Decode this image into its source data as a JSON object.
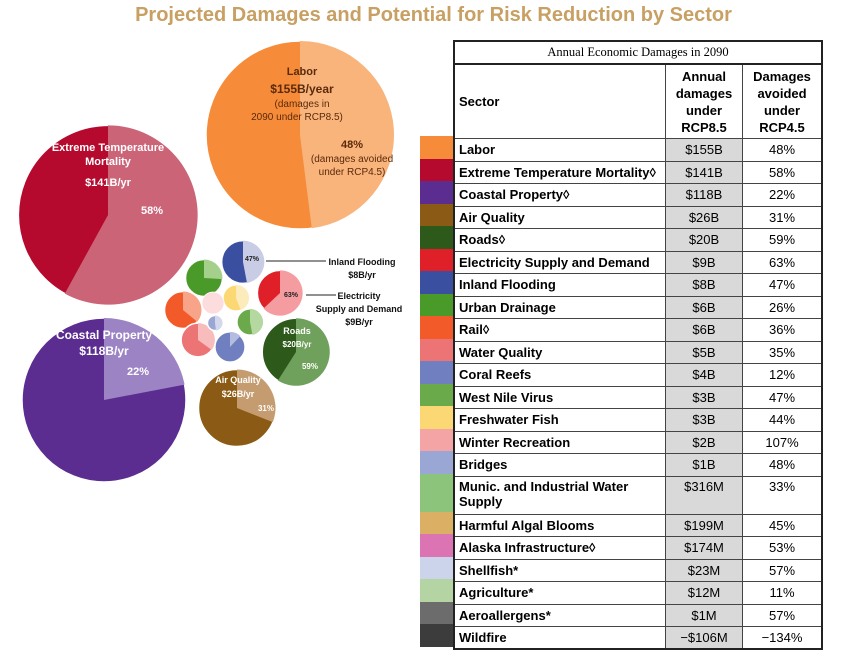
{
  "title": "Projected Damages and Potential for Risk Reduction by Sector",
  "colors": {
    "title": "#c8a064"
  },
  "table": {
    "caption": "Annual Economic Damages in 2090",
    "headers": {
      "sector": "Sector",
      "annual_damages": "Annual damages under RCP8.5",
      "damages_avoided": "Damages avoided under RCP4.5"
    },
    "rows": [
      {
        "sector": "Labor",
        "damages": "$155B",
        "avoided": "48%",
        "color": "#f68c3a"
      },
      {
        "sector": "Extreme Temperature Mortality◊",
        "damages": "$141B",
        "avoided": "58%",
        "color": "#b5092e"
      },
      {
        "sector": "Coastal Property◊",
        "damages": "$118B",
        "avoided": "22%",
        "color": "#5c2d91"
      },
      {
        "sector": "Air Quality",
        "damages": "$26B",
        "avoided": "31%",
        "color": "#8b5a14"
      },
      {
        "sector": "Roads◊",
        "damages": "$20B",
        "avoided": "59%",
        "color": "#2d5a1b"
      },
      {
        "sector": "Electricity Supply and Demand",
        "damages": "$9B",
        "avoided": "63%",
        "color": "#e02028"
      },
      {
        "sector": "Inland Flooding",
        "damages": "$8B",
        "avoided": "47%",
        "color": "#3a4fa0"
      },
      {
        "sector": "Urban Drainage",
        "damages": "$6B",
        "avoided": "26%",
        "color": "#4a9a2a"
      },
      {
        "sector": "Rail◊",
        "damages": "$6B",
        "avoided": "36%",
        "color": "#f25a2a"
      },
      {
        "sector": "Water Quality",
        "damages": "$5B",
        "avoided": "35%",
        "color": "#ec7474"
      },
      {
        "sector": "Coral Reefs",
        "damages": "$4B",
        "avoided": "12%",
        "color": "#6f7fbf"
      },
      {
        "sector": "West Nile Virus",
        "damages": "$3B",
        "avoided": "47%",
        "color": "#6aaa4a"
      },
      {
        "sector": "Freshwater Fish",
        "damages": "$3B",
        "avoided": "44%",
        "color": "#fcd874"
      },
      {
        "sector": "Winter Recreation",
        "damages": "$2B",
        "avoided": "107%",
        "color": "#f4a4a4"
      },
      {
        "sector": "Bridges",
        "damages": "$1B",
        "avoided": "48%",
        "color": "#9aa6d4"
      },
      {
        "sector": "Munic. and Industrial Water Supply",
        "damages": "$316M",
        "avoided": "33%",
        "color": "#8cc47c"
      },
      {
        "sector": "Harmful Algal Blooms",
        "damages": "$199M",
        "avoided": "45%",
        "color": "#dcb064"
      },
      {
        "sector": "Alaska Infrastructure◊",
        "damages": "$174M",
        "avoided": "53%",
        "color": "#dc74b4"
      },
      {
        "sector": "Shellfish*",
        "damages": "$23M",
        "avoided": "57%",
        "color": "#ccd4ec"
      },
      {
        "sector": "Agriculture*",
        "damages": "$12M",
        "avoided": "11%",
        "color": "#b4d4a4"
      },
      {
        "sector": "Aeroallergens*",
        "damages": "$1M",
        "avoided": "57%",
        "color": "#6c6c6c"
      },
      {
        "sector": "Wildfire",
        "damages": "−$106M",
        "avoided": "−134%",
        "color": "#3c3c3c"
      }
    ]
  },
  "chart_data": {
    "type": "bubble",
    "title": "Projected Damages and Potential for Risk Reduction by Sector",
    "bubbles": [
      {
        "sector": "Labor",
        "damages_billion": 155,
        "avoided_pct": 48,
        "color": "#f68c3a",
        "light": "#f9b47c"
      },
      {
        "sector": "Extreme Temperature Mortality",
        "damages_billion": 141,
        "avoided_pct": 58,
        "color": "#b5092e",
        "light": "#cc6478"
      },
      {
        "sector": "Coastal Property",
        "damages_billion": 118,
        "avoided_pct": 22,
        "color": "#5c2d91",
        "light": "#9c84c4"
      },
      {
        "sector": "Air Quality",
        "damages_billion": 26,
        "avoided_pct": 31,
        "color": "#8b5a14",
        "light": "#c49c70"
      },
      {
        "sector": "Roads",
        "damages_billion": 20,
        "avoided_pct": 59,
        "color": "#2d5a1b",
        "light": "#6fa05c"
      },
      {
        "sector": "Electricity Supply and Demand",
        "damages_billion": 9,
        "avoided_pct": 63,
        "color": "#e02028",
        "light": "#f49ca0"
      },
      {
        "sector": "Inland Flooding",
        "damages_billion": 8,
        "avoided_pct": 47,
        "color": "#3a4fa0",
        "light": "#c8cce4"
      },
      {
        "sector": "Urban Drainage",
        "damages_billion": 6,
        "avoided_pct": 26,
        "color": "#4a9a2a",
        "light": "#a4d08c"
      },
      {
        "sector": "Rail",
        "damages_billion": 6,
        "avoided_pct": 36,
        "color": "#f25a2a",
        "light": "#f8a488"
      },
      {
        "sector": "Water Quality",
        "damages_billion": 5,
        "avoided_pct": 35,
        "color": "#ec7474",
        "light": "#f8bcbc"
      },
      {
        "sector": "Coral Reefs",
        "damages_billion": 4,
        "avoided_pct": 12,
        "color": "#6f7fbf",
        "light": "#b4bce0"
      },
      {
        "sector": "West Nile Virus",
        "damages_billion": 3,
        "avoided_pct": 47,
        "color": "#6aaa4a",
        "light": "#b4d8a0"
      },
      {
        "sector": "Freshwater Fish",
        "damages_billion": 3,
        "avoided_pct": 44,
        "color": "#fcd874",
        "light": "#fcecbc"
      },
      {
        "sector": "Winter Recreation",
        "damages_billion": 2,
        "avoided_pct": 107,
        "color": "#f4a4a4",
        "light": "#fcdcdc"
      },
      {
        "sector": "Bridges",
        "damages_billion": 1,
        "avoided_pct": 48,
        "color": "#9aa6d4",
        "light": "#d4d8ec"
      }
    ],
    "labels": {
      "labor_name": "Labor",
      "labor_value": "$155B/year",
      "labor_note1": "(damages in",
      "labor_note2": "2090 under RCP8.5)",
      "labor_pct": "48%",
      "labor_pct_note1": "(damages avoided",
      "labor_pct_note2": "under RCP4.5)",
      "etm_name1": "Extreme Temperature",
      "etm_name2": "Mortality",
      "etm_value": "$141B/yr",
      "etm_pct": "58%",
      "coastal_name": "Coastal Property",
      "coastal_value": "$118B/yr",
      "coastal_pct": "22%",
      "air_name": "Air Quality",
      "air_value": "$26B/yr",
      "air_pct": "31%",
      "roads_name": "Roads",
      "roads_value": "$20B/yr",
      "roads_pct": "59%",
      "flood_pct": "47%",
      "flood_name": "Inland Flooding",
      "flood_value": "$8B/yr",
      "elec_pct": "63%",
      "elec_name1": "Electricity",
      "elec_name2": "Supply and Demand",
      "elec_value": "$9B/yr"
    }
  }
}
